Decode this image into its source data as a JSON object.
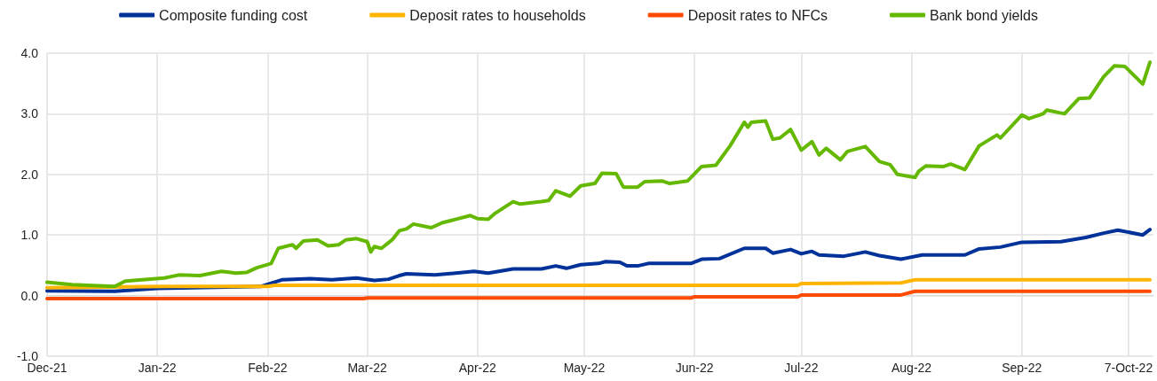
{
  "chart_data": {
    "type": "line",
    "legend": "top",
    "grid": true,
    "marker": "none",
    "line_style": "solid",
    "xlim": [
      "2021-12-01",
      "2022-10-08"
    ],
    "xticks": [
      {
        "value": "2021-12-01",
        "label": "Dec-21"
      },
      {
        "value": "2022-01-01",
        "label": "Jan-22"
      },
      {
        "value": "2022-02-01",
        "label": "Feb-22"
      },
      {
        "value": "2022-03-01",
        "label": "Mar-22"
      },
      {
        "value": "2022-04-01",
        "label": "Apr-22"
      },
      {
        "value": "2022-05-01",
        "label": "May-22"
      },
      {
        "value": "2022-06-01",
        "label": "Jun-22"
      },
      {
        "value": "2022-07-01",
        "label": "Jul-22"
      },
      {
        "value": "2022-08-01",
        "label": "Aug-22"
      },
      {
        "value": "2022-09-01",
        "label": "Sep-22"
      },
      {
        "value": "2022-10-01",
        "label": "7-Oct-22"
      }
    ],
    "ylim": [
      -1,
      4
    ],
    "yticks": [
      {
        "value": -1,
        "label": "-1.0"
      },
      {
        "value": 0,
        "label": "0.0"
      },
      {
        "value": 1,
        "label": "1.0"
      },
      {
        "value": 2,
        "label": "2.0"
      },
      {
        "value": 3,
        "label": "3.0"
      },
      {
        "value": 4,
        "label": "4.0"
      }
    ],
    "series": [
      {
        "name": "Composite funding cost",
        "color": "#003299",
        "x": [
          "2021-12-01",
          "2021-12-20",
          "2022-01-01",
          "2022-01-30",
          "2022-02-05",
          "2022-02-13",
          "2022-02-19",
          "2022-02-26",
          "2022-03-03",
          "2022-03-07",
          "2022-03-10",
          "2022-03-12",
          "2022-03-20",
          "2022-03-31",
          "2022-04-04",
          "2022-04-11",
          "2022-04-19",
          "2022-04-23",
          "2022-04-26",
          "2022-04-30",
          "2022-05-05",
          "2022-05-07",
          "2022-05-11",
          "2022-05-13",
          "2022-05-16",
          "2022-05-19",
          "2022-05-31",
          "2022-06-03",
          "2022-06-08",
          "2022-06-15",
          "2022-06-21",
          "2022-06-23",
          "2022-06-28",
          "2022-07-01",
          "2022-07-04",
          "2022-07-06",
          "2022-07-13",
          "2022-07-19",
          "2022-07-23",
          "2022-07-29",
          "2022-08-04",
          "2022-08-16",
          "2022-08-20",
          "2022-08-26",
          "2022-09-01",
          "2022-09-12",
          "2022-09-19",
          "2022-09-24",
          "2022-09-28",
          "2022-10-05",
          "2022-10-07"
        ],
        "values": [
          0.08,
          0.07,
          0.12,
          0.15,
          0.26,
          0.28,
          0.26,
          0.29,
          0.25,
          0.27,
          0.33,
          0.36,
          0.34,
          0.4,
          0.37,
          0.44,
          0.44,
          0.49,
          0.45,
          0.51,
          0.53,
          0.56,
          0.55,
          0.49,
          0.49,
          0.53,
          0.53,
          0.6,
          0.61,
          0.78,
          0.78,
          0.7,
          0.76,
          0.69,
          0.73,
          0.67,
          0.65,
          0.72,
          0.66,
          0.6,
          0.67,
          0.67,
          0.77,
          0.8,
          0.88,
          0.89,
          0.96,
          1.03,
          1.08,
          1.0,
          1.09
        ]
      },
      {
        "name": "Deposit rates to households",
        "color": "#ffb400",
        "x": [
          "2021-12-01",
          "2022-01-03",
          "2022-02-01",
          "2022-02-03",
          "2022-06-30",
          "2022-07-01",
          "2022-07-29",
          "2022-08-02",
          "2022-10-07"
        ],
        "values": [
          0.13,
          0.15,
          0.15,
          0.17,
          0.17,
          0.2,
          0.21,
          0.26,
          0.26
        ]
      },
      {
        "name": "Deposit rates to NFCs",
        "color": "#ff4b00",
        "x": [
          "2021-12-01",
          "2022-02-28",
          "2022-03-01",
          "2022-05-31",
          "2022-06-01",
          "2022-06-30",
          "2022-07-01",
          "2022-07-29",
          "2022-08-02",
          "2022-10-07"
        ],
        "values": [
          -0.05,
          -0.05,
          -0.04,
          -0.04,
          -0.02,
          -0.02,
          0.01,
          0.01,
          0.07,
          0.07
        ]
      },
      {
        "name": "Bank bond yields",
        "color": "#65b800",
        "x": [
          "2021-12-01",
          "2021-12-08",
          "2021-12-20",
          "2021-12-23",
          "2022-01-03",
          "2022-01-07",
          "2022-01-13",
          "2022-01-19",
          "2022-01-23",
          "2022-01-26",
          "2022-01-29",
          "2022-02-02",
          "2022-02-04",
          "2022-02-08",
          "2022-02-09",
          "2022-02-11",
          "2022-02-15",
          "2022-02-18",
          "2022-02-21",
          "2022-02-23",
          "2022-02-26",
          "2022-03-01",
          "2022-03-02",
          "2022-03-03",
          "2022-03-05",
          "2022-03-08",
          "2022-03-10",
          "2022-03-12",
          "2022-03-14",
          "2022-03-19",
          "2022-03-22",
          "2022-03-26",
          "2022-03-30",
          "2022-04-01",
          "2022-04-04",
          "2022-04-06",
          "2022-04-11",
          "2022-04-13",
          "2022-04-19",
          "2022-04-21",
          "2022-04-23",
          "2022-04-27",
          "2022-04-30",
          "2022-05-04",
          "2022-05-06",
          "2022-05-10",
          "2022-05-12",
          "2022-05-16",
          "2022-05-18",
          "2022-05-23",
          "2022-05-25",
          "2022-05-30",
          "2022-06-03",
          "2022-06-07",
          "2022-06-11",
          "2022-06-15",
          "2022-06-16",
          "2022-06-17",
          "2022-06-21",
          "2022-06-23",
          "2022-06-25",
          "2022-06-28",
          "2022-07-01",
          "2022-07-04",
          "2022-07-06",
          "2022-07-08",
          "2022-07-12",
          "2022-07-14",
          "2022-07-19",
          "2022-07-23",
          "2022-07-26",
          "2022-07-28",
          "2022-08-02",
          "2022-08-03",
          "2022-08-05",
          "2022-08-10",
          "2022-08-12",
          "2022-08-16",
          "2022-08-20",
          "2022-08-25",
          "2022-08-26",
          "2022-09-01",
          "2022-09-03",
          "2022-09-07",
          "2022-09-08",
          "2022-09-13",
          "2022-09-17",
          "2022-09-20",
          "2022-09-24",
          "2022-09-27",
          "2022-09-30",
          "2022-10-05",
          "2022-10-07"
        ],
        "values": [
          0.22,
          0.18,
          0.15,
          0.24,
          0.29,
          0.34,
          0.33,
          0.4,
          0.37,
          0.38,
          0.46,
          0.53,
          0.78,
          0.84,
          0.78,
          0.9,
          0.92,
          0.82,
          0.84,
          0.92,
          0.94,
          0.89,
          0.72,
          0.81,
          0.78,
          0.92,
          1.07,
          1.1,
          1.18,
          1.12,
          1.2,
          1.26,
          1.32,
          1.27,
          1.26,
          1.36,
          1.55,
          1.51,
          1.55,
          1.57,
          1.73,
          1.64,
          1.81,
          1.85,
          2.02,
          2.01,
          1.79,
          1.79,
          1.88,
          1.89,
          1.85,
          1.89,
          2.13,
          2.15,
          2.47,
          2.86,
          2.78,
          2.86,
          2.88,
          2.58,
          2.6,
          2.74,
          2.4,
          2.54,
          2.32,
          2.43,
          2.24,
          2.38,
          2.46,
          2.21,
          2.16,
          2.0,
          1.95,
          2.05,
          2.14,
          2.13,
          2.17,
          2.08,
          2.47,
          2.65,
          2.6,
          2.98,
          2.92,
          3.0,
          3.06,
          3.0,
          3.25,
          3.26,
          3.61,
          3.79,
          3.78,
          3.49,
          3.85
        ]
      }
    ]
  }
}
